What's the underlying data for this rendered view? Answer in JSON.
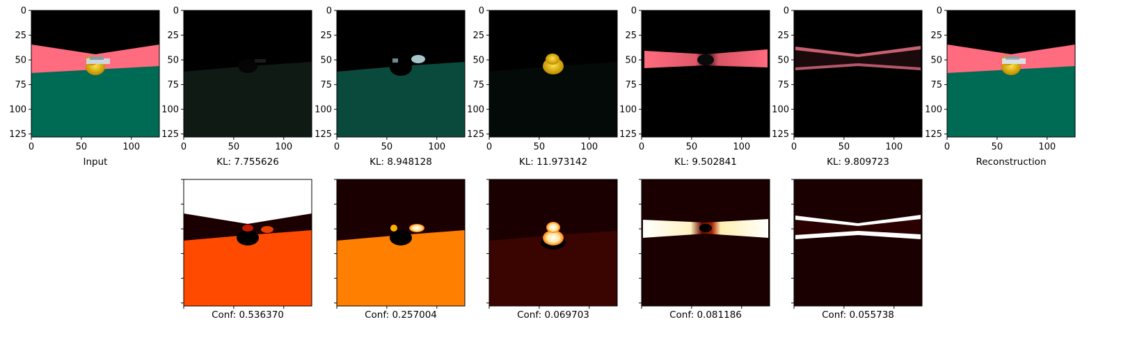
{
  "chart_data": {
    "type": "image-grid",
    "x_ticks": [
      0,
      50,
      100
    ],
    "y_ticks": [
      0,
      25,
      50,
      75,
      100,
      125
    ],
    "image_extent": [
      0,
      128
    ],
    "top_row": [
      {
        "caption": "Input",
        "scene": "input"
      },
      {
        "caption": "KL: 7.755626",
        "scene": "floor_dim"
      },
      {
        "caption": "KL: 8.948128",
        "scene": "floor"
      },
      {
        "caption": "KL: 11.973142",
        "scene": "duck"
      },
      {
        "caption": "KL: 9.502841",
        "scene": "pink"
      },
      {
        "caption": "KL: 9.809723",
        "scene": "wall"
      },
      {
        "caption": "Reconstruction",
        "scene": "recon"
      }
    ],
    "bottom_row": [
      {
        "caption": "Conf: 0.536370",
        "conf": 0.53637,
        "heat": "floor"
      },
      {
        "caption": "Conf: 0.257004",
        "conf": 0.257004,
        "heat": "floor2"
      },
      {
        "caption": "Conf: 0.069703",
        "conf": 0.069703,
        "heat": "duck"
      },
      {
        "caption": "Conf: 0.081186",
        "conf": 0.081186,
        "heat": "band"
      },
      {
        "caption": "Conf: 0.055738",
        "conf": 0.055738,
        "heat": "band2"
      }
    ],
    "colors": {
      "background": "#000000",
      "wall_pink": "#ff6b7f",
      "floor_green": "#006b54",
      "duck_yellow": "#f0c000",
      "heat_high": "#ffffff",
      "heat_mid": "#ff5a00",
      "heat_low": "#1a0000"
    }
  }
}
